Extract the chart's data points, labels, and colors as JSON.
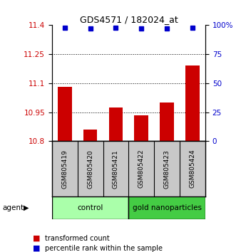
{
  "title": "GDS4571 / 182024_at",
  "samples": [
    "GSM805419",
    "GSM805420",
    "GSM805421",
    "GSM805422",
    "GSM805423",
    "GSM805424"
  ],
  "bar_values": [
    11.08,
    10.86,
    10.975,
    10.935,
    11.0,
    11.19
  ],
  "percentile_values": [
    98,
    97,
    98,
    97,
    97,
    98
  ],
  "bar_color": "#cc0000",
  "dot_color": "#0000cc",
  "ylim_left": [
    10.8,
    11.4
  ],
  "ylim_right": [
    0,
    100
  ],
  "yticks_left": [
    10.8,
    10.95,
    11.1,
    11.25,
    11.4
  ],
  "ytick_labels_left": [
    "10.8",
    "10.95",
    "11.1",
    "11.25",
    "11.4"
  ],
  "yticks_right": [
    0,
    25,
    50,
    75,
    100
  ],
  "ytick_labels_right": [
    "0",
    "25",
    "50",
    "75",
    "100%"
  ],
  "hlines": [
    10.95,
    11.1,
    11.25
  ],
  "groups": [
    {
      "label": "control",
      "indices": [
        0,
        1,
        2
      ],
      "color": "#aaffaa"
    },
    {
      "label": "gold nanoparticles",
      "indices": [
        3,
        4,
        5
      ],
      "color": "#44cc44"
    }
  ],
  "agent_label": "agent",
  "legend_items": [
    {
      "color": "#cc0000",
      "label": "transformed count"
    },
    {
      "color": "#0000cc",
      "label": "percentile rank within the sample"
    }
  ],
  "bg_color": "#ffffff",
  "sample_bg": "#c8c8c8",
  "left_tick_color": "#cc0000",
  "right_tick_color": "#0000cc",
  "title_fontsize": 9,
  "tick_fontsize": 7.5,
  "sample_fontsize": 6.5,
  "group_fontsize": 7.5,
  "legend_fontsize": 7
}
